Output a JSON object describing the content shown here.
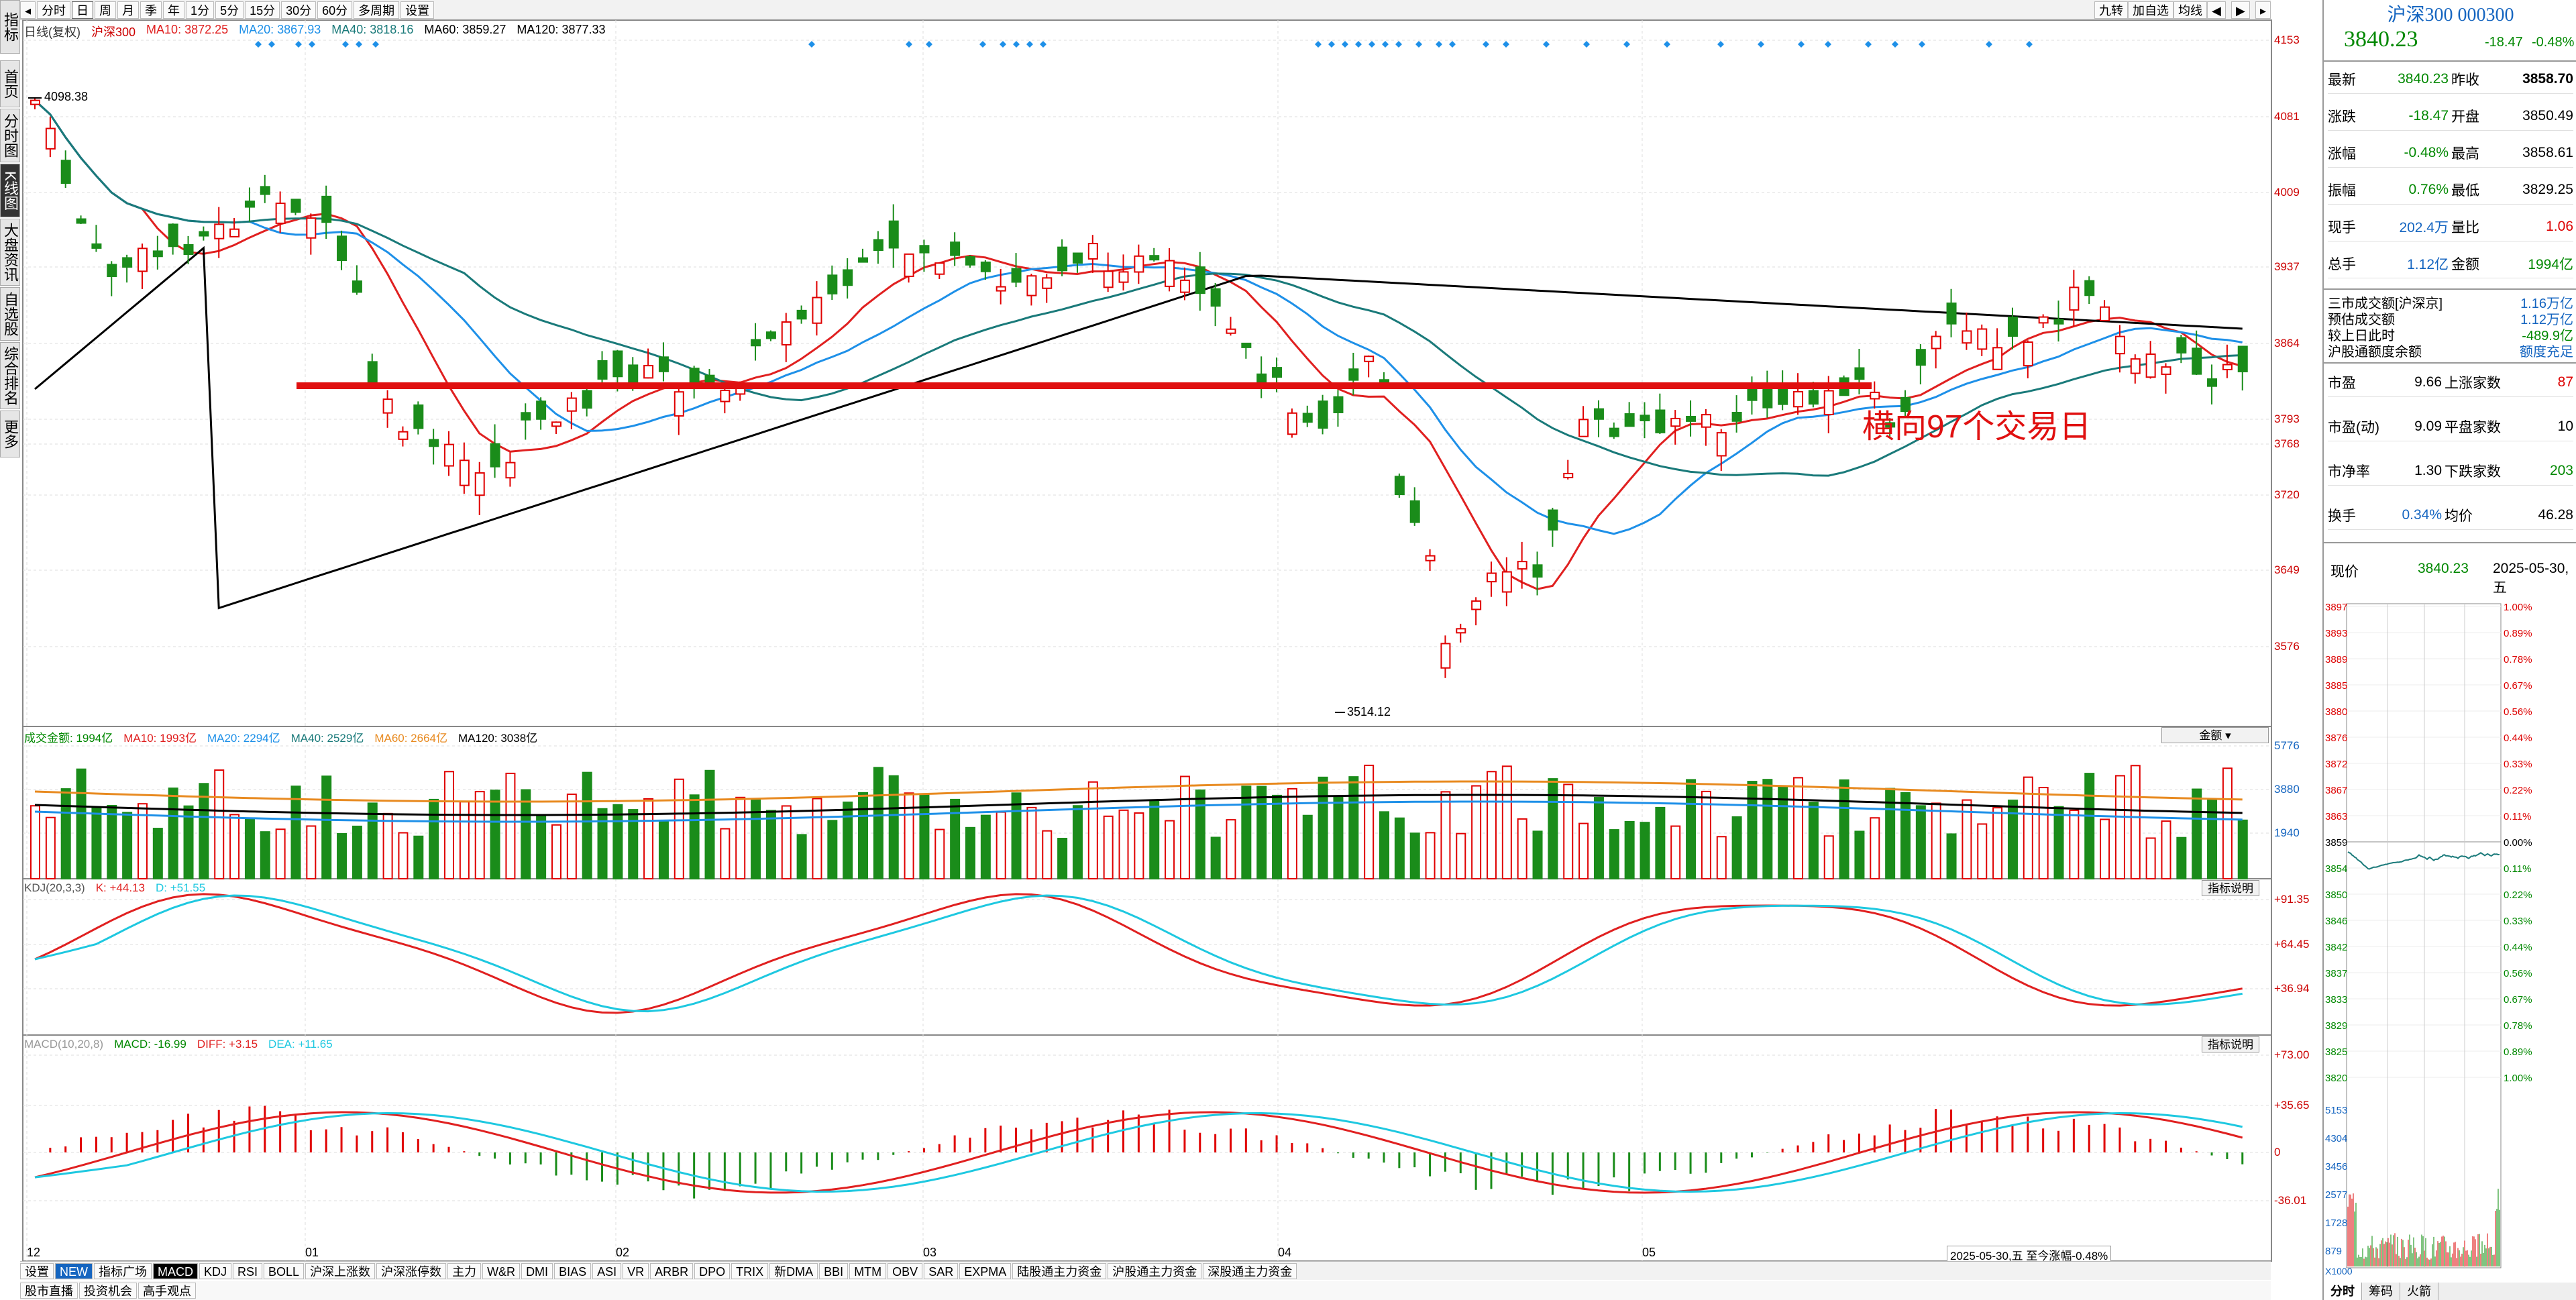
{
  "sidebar": {
    "items": [
      "指标",
      "首页",
      "分时图",
      "K线图",
      "大盘资讯",
      "自选股",
      "综合排名",
      "更多"
    ]
  },
  "toolbar": {
    "tabs": [
      "分时",
      "日",
      "周",
      "月",
      "季",
      "年",
      "1分",
      "5分",
      "15分",
      "30分",
      "60分",
      "多周期",
      "设置"
    ],
    "right": [
      "九转",
      "加自选",
      "均线"
    ]
  },
  "main_legend": {
    "name": "日线(复权)",
    "stock": "沪深300",
    "ma10": "MA10: 3872.25",
    "ma20": "MA20: 3867.93",
    "ma40": "MA40: 3818.16",
    "ma60": "MA60: 3859.27",
    "ma120": "MA120: 3877.33"
  },
  "price_axis": [
    "4153",
    "4081",
    "4009",
    "3937",
    "3864",
    "3793",
    "3768",
    "3720",
    "3649",
    "3576"
  ],
  "annot": {
    "high": "4098.38",
    "low": "3514.12",
    "text": "横向97个交易日"
  },
  "vol_legend": {
    "name": "成交金额: 1994亿",
    "ma10": "MA10: 1993亿",
    "ma20": "MA20: 2294亿",
    "ma40": "MA40: 2529亿",
    "ma60": "MA60: 2664亿",
    "ma120": "MA120: 3038亿"
  },
  "vol_axis": [
    "5776",
    "3880",
    "1940"
  ],
  "vol_btn": "金额",
  "kdj_legend": {
    "name": "KDJ(20,3,3)",
    "k": "K: +44.13",
    "d": "D: +51.55"
  },
  "kdj_axis": [
    "+91.35",
    "+64.45",
    "+36.94"
  ],
  "macd_legend": {
    "name": "MACD(10,20,8)",
    "macd": "MACD: -16.99",
    "diff": "DIFF: +3.15",
    "dea": "DEA: +11.65"
  },
  "macd_axis": [
    "+73.00",
    "+35.65",
    "0",
    "-36.01"
  ],
  "ind_btn": "指标说明",
  "x_axis": [
    "12",
    "01",
    "02",
    "03",
    "04",
    "05"
  ],
  "status": "2025-05-30,五 至今涨幅-0.48%",
  "bottom_tabs": [
    "设置",
    "NEW",
    "指标广场",
    "MACD",
    "KDJ",
    "RSI",
    "BOLL",
    "沪深上涨数",
    "沪深涨停数",
    "主力",
    "W&R",
    "DMI",
    "BIAS",
    "ASI",
    "VR",
    "ARBR",
    "DPO",
    "TRIX",
    "新DMA",
    "BBI",
    "MTM",
    "OBV",
    "SAR",
    "EXPMA",
    "陆股通主力资金",
    "沪股通主力资金",
    "深股通主力资金"
  ],
  "bottom2": [
    "股市直播",
    "投资机会",
    "高手观点"
  ],
  "quote": {
    "title": "沪深300 000300",
    "price": "3840.23",
    "chg": "-18.47",
    "pct": "-0.48%",
    "rows": [
      [
        "最新",
        "3840.23",
        "昨收",
        "3858.70"
      ],
      [
        "涨跌",
        "-18.47",
        "开盘",
        "3850.49"
      ],
      [
        "涨幅",
        "-0.48%",
        "最高",
        "3858.61"
      ],
      [
        "振幅",
        "0.76%",
        "最低",
        "3829.25"
      ],
      [
        "现手",
        "202.4万",
        "量比",
        "1.06"
      ],
      [
        "总手",
        "1.12亿",
        "金额",
        "1994亿"
      ]
    ],
    "flow": [
      [
        "三市成交额[沪深京]",
        "1.16万亿"
      ],
      [
        "预估成交额",
        "1.12万亿"
      ],
      [
        "较上日此时",
        "-489.9亿"
      ],
      [
        "沪股通额度余额",
        "额度充足"
      ]
    ],
    "val": [
      [
        "市盈",
        "9.66",
        "上涨家数",
        "87"
      ],
      [
        "市盈(动)",
        "9.09",
        "平盘家数",
        "10"
      ],
      [
        "市净率",
        "1.30",
        "下跌家数",
        "203"
      ],
      [
        "换手",
        "0.34%",
        "均价",
        "46.28"
      ]
    ],
    "now_label": "现价",
    "now_val": "3840.23",
    "now_date": "2025-05-30,五",
    "mini_left": [
      "3897",
      "3893",
      "3889",
      "3885",
      "3880",
      "3876",
      "3872",
      "3867",
      "3863",
      "3859",
      "3854",
      "3850",
      "3846",
      "3842",
      "3837",
      "3833",
      "3829",
      "3825",
      "3820"
    ],
    "mini_right": [
      "1.00%",
      "0.89%",
      "0.78%",
      "0.67%",
      "0.56%",
      "0.44%",
      "0.33%",
      "0.22%",
      "0.11%",
      "0.00%",
      "0.11%",
      "0.22%",
      "0.33%",
      "0.44%",
      "0.56%",
      "0.67%",
      "0.78%",
      "0.89%",
      "1.00%"
    ],
    "mini_vol": [
      "5153",
      "4304",
      "3456",
      "2577",
      "1728",
      "879"
    ],
    "mini_vol_unit": "X1000",
    "tabs": [
      "分时",
      "筹码",
      "火箭"
    ]
  },
  "colors": {
    "up": "#e00000",
    "down": "#1a8c1a",
    "ma10": "#e02020",
    "ma20": "#1e90e8",
    "ma40": "#1a7a7a",
    "ma120": "#000000"
  }
}
